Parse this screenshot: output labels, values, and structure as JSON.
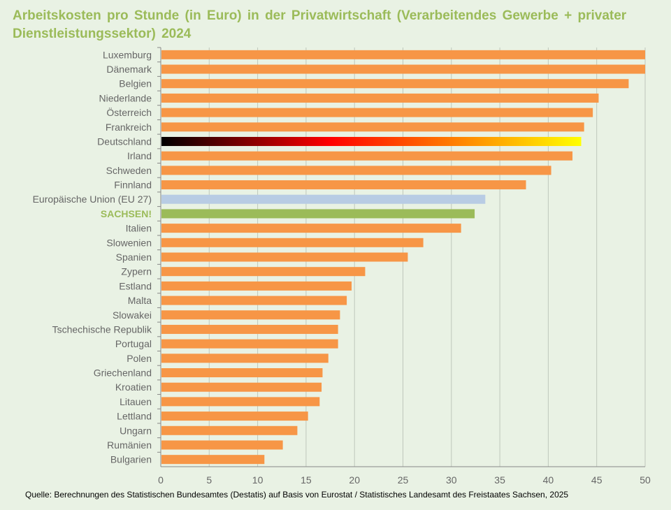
{
  "chart_data": {
    "type": "bar",
    "orientation": "horizontal",
    "title": "Arbeitskosten pro Stunde (in Euro) in der Privatwirtschaft (Verarbeitendes Gewerbe + privater Dienstleistungssektor) 2024",
    "xlabel": "",
    "ylabel": "",
    "xlim": [
      0,
      50
    ],
    "xticks": [
      0,
      5,
      10,
      15,
      20,
      25,
      30,
      35,
      40,
      45,
      50
    ],
    "grid": "vertical",
    "categories": [
      "Luxemburg",
      "Dänemark",
      "Belgien",
      "Niederlande",
      "Österreich",
      "Frankreich",
      "Deutschland",
      "Irland",
      "Schweden",
      "Finnland",
      "Europäische Union (EU 27)",
      "SACHSEN!",
      "Italien",
      "Slowenien",
      "Spanien",
      "Zypern",
      "Estland",
      "Malta",
      "Slowakei",
      "Tschechische Republik",
      "Portugal",
      "Polen",
      "Griechenland",
      "Kroatien",
      "Litauen",
      "Lettland",
      "Ungarn",
      "Rumänien",
      "Bulgarien"
    ],
    "values": [
      50,
      50,
      48.3,
      45.2,
      44.6,
      43.7,
      43.4,
      42.5,
      40.3,
      37.7,
      33.5,
      32.4,
      31.0,
      27.1,
      25.5,
      21.1,
      19.7,
      19.2,
      18.5,
      18.3,
      18.3,
      17.3,
      16.7,
      16.6,
      16.4,
      15.2,
      14.1,
      12.6,
      10.7
    ],
    "colors": {
      "default": "#f79646",
      "eu": "#b8cce4",
      "sachsen": "#9bbb59",
      "deutschland_gradient": [
        "#000000",
        "#ff0000",
        "#ffff00"
      ],
      "highlight_label": "#9bbb59"
    }
  },
  "source": "Quelle: Berechnungen des Statistischen Bundesamtes (Destatis) auf Basis von Eurostat / Statistisches Landesamt des Freistaates Sachsen, 2025"
}
